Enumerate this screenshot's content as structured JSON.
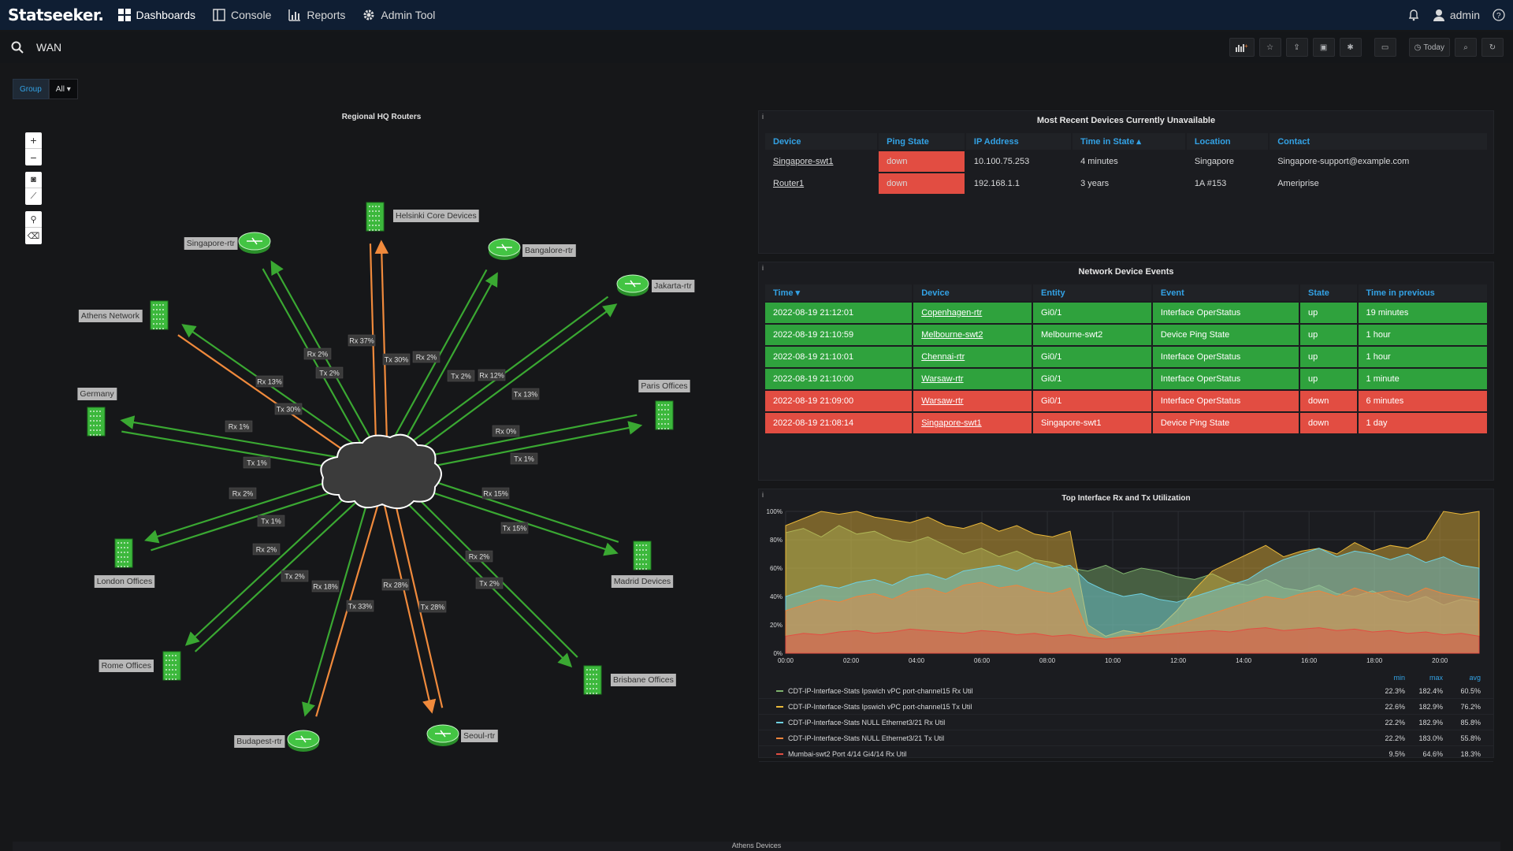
{
  "app": {
    "logo": "Statseeker."
  },
  "nav": [
    {
      "label": "Dashboards",
      "icon": "dashboard-grid-icon"
    },
    {
      "label": "Console",
      "icon": "console-icon"
    },
    {
      "label": "Reports",
      "icon": "reports-chart-icon"
    },
    {
      "label": "Admin Tool",
      "icon": "gear-icon"
    }
  ],
  "user": {
    "name": "admin"
  },
  "dashboard": {
    "title": "WAN"
  },
  "toolbar": {
    "time_label": "Today"
  },
  "variables": {
    "group_label": "Group",
    "group_value": "All"
  },
  "map": {
    "title": "Regional HQ Routers",
    "nodes": [
      {
        "id": "helsinki",
        "label": "Helsinki Core Devices",
        "type": "building"
      },
      {
        "id": "singapore",
        "label": "Singapore-rtr",
        "type": "router"
      },
      {
        "id": "bangalore",
        "label": "Bangalore-rtr",
        "type": "router"
      },
      {
        "id": "jakarta",
        "label": "Jakarta-rtr",
        "type": "router"
      },
      {
        "id": "athens",
        "label": "Athens Network",
        "type": "building"
      },
      {
        "id": "germany",
        "label": "Germany",
        "type": "building"
      },
      {
        "id": "paris",
        "label": "Paris Offices",
        "type": "building"
      },
      {
        "id": "london",
        "label": "London Offices",
        "type": "building"
      },
      {
        "id": "madrid",
        "label": "Madrid Devices",
        "type": "building"
      },
      {
        "id": "rome",
        "label": "Rome Offices",
        "type": "building"
      },
      {
        "id": "brisbane",
        "label": "Brisbane Offices",
        "type": "building"
      },
      {
        "id": "budapest",
        "label": "Budapest-rtr",
        "type": "router"
      },
      {
        "id": "seoul",
        "label": "Seoul-rtr",
        "type": "router"
      }
    ],
    "edge_labels": [
      "Rx 37%",
      "Tx 30%",
      "Rx 2%",
      "Tx 2%",
      "Rx 2%",
      "Rx 13%",
      "Tx 30%",
      "Tx 2%",
      "Rx 12%",
      "Tx 13%",
      "Rx 1%",
      "Rx 0%",
      "Tx 1%",
      "Tx 1%",
      "Rx 2%",
      "Rx 15%",
      "Tx 1%",
      "Tx 15%",
      "Rx 2%",
      "Rx 2%",
      "Tx 2%",
      "Tx 2%",
      "Rx 18%",
      "Rx 28%",
      "Tx 33%",
      "Tx 28%"
    ],
    "colors": {
      "green": "#3aa832",
      "orange": "#f08a3c"
    }
  },
  "unavailable": {
    "title": "Most Recent Devices Currently Unavailable",
    "info": "i",
    "columns": [
      "Device",
      "Ping State",
      "IP Address",
      "Time in State ▴",
      "Location",
      "Contact"
    ],
    "rows": [
      [
        "Singapore-swt1",
        "down",
        "10.100.75.253",
        "4 minutes",
        "Singapore",
        "Singapore-support@example.com"
      ],
      [
        "Router1",
        "down",
        "192.168.1.1",
        "3 years",
        "1A #153",
        "Ameriprise"
      ]
    ]
  },
  "events": {
    "title": "Network Device Events",
    "info": "i",
    "columns": [
      "Time ▾",
      "Device",
      "Entity",
      "Event",
      "State",
      "Time in previous"
    ],
    "rows": [
      {
        "state_class": "green",
        "cells": [
          "2022-08-19 21:12:01",
          "Copenhagen-rtr",
          "Gi0/1",
          "Interface OperStatus",
          "up",
          "19 minutes"
        ]
      },
      {
        "state_class": "green",
        "cells": [
          "2022-08-19 21:10:59",
          "Melbourne-swt2",
          "Melbourne-swt2",
          "Device Ping State",
          "up",
          "1 hour"
        ]
      },
      {
        "state_class": "green",
        "cells": [
          "2022-08-19 21:10:01",
          "Chennai-rtr",
          "Gi0/1",
          "Interface OperStatus",
          "up",
          "1 hour"
        ]
      },
      {
        "state_class": "green",
        "cells": [
          "2022-08-19 21:10:00",
          "Warsaw-rtr",
          "Gi0/1",
          "Interface OperStatus",
          "up",
          "1 minute"
        ]
      },
      {
        "state_class": "red",
        "cells": [
          "2022-08-19 21:09:00",
          "Warsaw-rtr",
          "Gi0/1",
          "Interface OperStatus",
          "down",
          "6 minutes"
        ]
      },
      {
        "state_class": "red",
        "cells": [
          "2022-08-19 21:08:14",
          "Singapore-swt1",
          "Singapore-swt1",
          "Device Ping State",
          "down",
          "1 day"
        ]
      }
    ]
  },
  "chart_data": {
    "type": "area",
    "title": "Top Interface Rx and Tx Utilization",
    "info": "i",
    "x_ticks": [
      "00:00",
      "02:00",
      "04:00",
      "06:00",
      "08:00",
      "10:00",
      "12:00",
      "14:00",
      "16:00",
      "18:00",
      "20:00"
    ],
    "y_ticks": [
      "0%",
      "20%",
      "40%",
      "60%",
      "80%",
      "100%"
    ],
    "ylim": [
      0,
      100
    ],
    "grid": true,
    "legend_headers": [
      "min",
      "max",
      "avg"
    ],
    "series": [
      {
        "name": "CDT-IP-Interface-Stats Ipswich vPC port-channel15 Rx Util",
        "color": "#7eb26d",
        "min": "22.3%",
        "max": "182.4%",
        "avg": "60.5%",
        "values": [
          85,
          88,
          82,
          90,
          84,
          86,
          80,
          78,
          82,
          76,
          70,
          74,
          68,
          72,
          66,
          64,
          60,
          58,
          62,
          56,
          60,
          58,
          54,
          52,
          56,
          50,
          48,
          52,
          46,
          44,
          48,
          42,
          40,
          44,
          38,
          36,
          40,
          34,
          38,
          36
        ]
      },
      {
        "name": "CDT-IP-Interface-Stats Ipswich vPC port-channel15 Tx Util",
        "color": "#eab839",
        "min": "22.6%",
        "max": "182.9%",
        "avg": "76.2%",
        "values": [
          90,
          95,
          100,
          98,
          100,
          96,
          94,
          92,
          96,
          90,
          88,
          92,
          86,
          90,
          84,
          82,
          86,
          20,
          12,
          16,
          14,
          18,
          30,
          45,
          58,
          64,
          70,
          76,
          68,
          72,
          74,
          70,
          78,
          72,
          76,
          74,
          80,
          100,
          98,
          100
        ]
      },
      {
        "name": "CDT-IP-Interface-Stats NULL Ethernet3/21 Rx Util",
        "color": "#6ed0e0",
        "min": "22.2%",
        "max": "182.9%",
        "avg": "85.8%",
        "values": [
          40,
          44,
          48,
          46,
          50,
          52,
          48,
          54,
          56,
          52,
          58,
          60,
          62,
          58,
          64,
          60,
          62,
          50,
          44,
          40,
          42,
          38,
          36,
          40,
          44,
          48,
          52,
          60,
          66,
          70,
          74,
          68,
          72,
          70,
          66,
          70,
          64,
          68,
          62,
          60
        ]
      },
      {
        "name": "CDT-IP-Interface-Stats NULL Ethernet3/21 Tx Util",
        "color": "#ef843c",
        "min": "22.2%",
        "max": "183.0%",
        "avg": "55.8%",
        "values": [
          30,
          34,
          38,
          36,
          40,
          42,
          38,
          44,
          46,
          42,
          48,
          50,
          46,
          48,
          44,
          42,
          46,
          14,
          10,
          12,
          14,
          16,
          20,
          24,
          28,
          32,
          36,
          40,
          38,
          42,
          44,
          40,
          46,
          42,
          44,
          40,
          46,
          42,
          40,
          38
        ]
      },
      {
        "name": "Mumbai-swt2 Port 4/14 Gi4/14 Rx Util",
        "color": "#e24d42",
        "min": "9.5%",
        "max": "64.6%",
        "avg": "18.3%",
        "values": [
          12,
          14,
          13,
          15,
          16,
          14,
          15,
          17,
          16,
          15,
          14,
          16,
          15,
          13,
          14,
          12,
          13,
          11,
          10,
          11,
          12,
          13,
          14,
          15,
          16,
          15,
          17,
          18,
          16,
          17,
          18,
          16,
          17,
          15,
          16,
          14,
          15,
          13,
          14,
          12
        ]
      }
    ]
  },
  "bottom_panel": {
    "title": "Athens Devices"
  }
}
